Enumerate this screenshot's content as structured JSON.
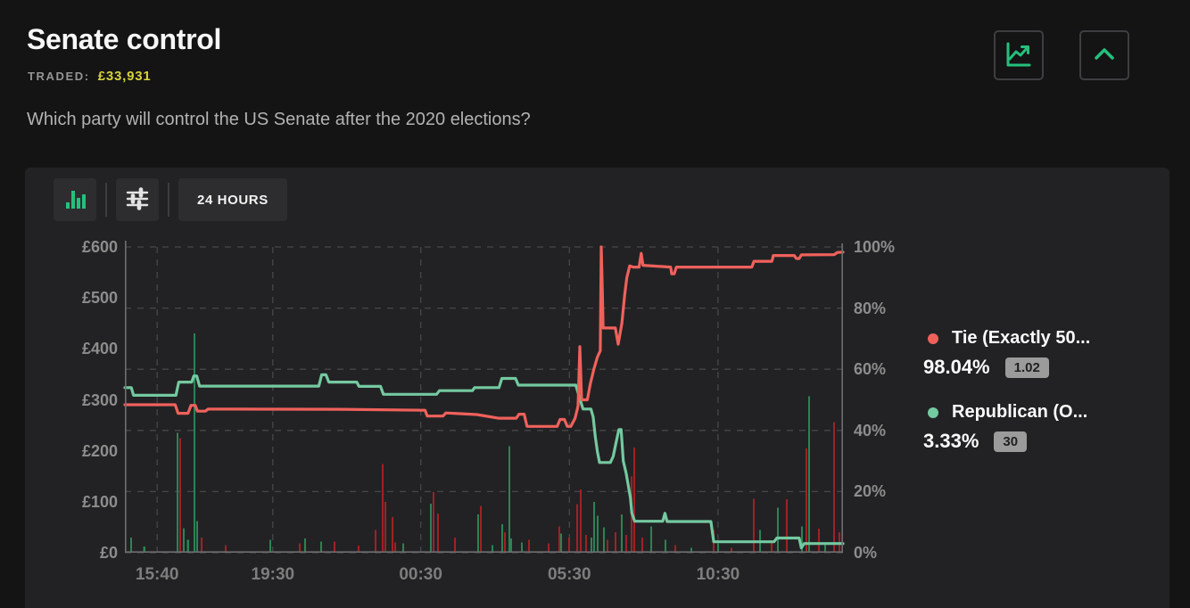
{
  "header": {
    "title": "Senate control",
    "traded_label": "TRADED:",
    "traded_value": "£33,931",
    "subtitle": "Which party will control the US Senate after the 2020 elections?"
  },
  "toolbar": {
    "time_range_label": "24 HOURS"
  },
  "legend": [
    {
      "name": "Tie (Exactly 50...",
      "percent": "98.04%",
      "odds": "1.02",
      "color": "#f0615c"
    },
    {
      "name": "Republican (O...",
      "percent": "3.33%",
      "odds": "30",
      "color": "#74c9a0"
    }
  ],
  "chart_data": {
    "type": "line",
    "title": "Senate control price history, 24 hours",
    "grid": true,
    "legend_position": "right",
    "colors": {
      "tie_line": "#f0615c",
      "republican_line": "#74c9a0",
      "volume_sell": "#a02126",
      "volume_buy": "#2c8355",
      "grid": "#47474a",
      "axis": "#6e6e70",
      "accent_green": "#25c07c",
      "traded_yellow": "#d5d23c"
    },
    "left_axis": {
      "unit": "£",
      "min": 0,
      "max": 600,
      "labels": [
        "£600",
        "£500",
        "£400",
        "£300",
        "£200",
        "£100",
        "£0"
      ]
    },
    "right_axis": {
      "unit": "%",
      "min": 0,
      "max": 100,
      "labels": [
        "100%",
        "80%",
        "60%",
        "40%",
        "20%",
        "0%"
      ]
    },
    "x_ticks": [
      {
        "label": "15:40",
        "f": 0.045
      },
      {
        "label": "19:30",
        "f": 0.206
      },
      {
        "label": "00:30",
        "f": 0.412
      },
      {
        "label": "05:30",
        "f": 0.619
      },
      {
        "label": "10:30",
        "f": 0.826
      }
    ],
    "series": [
      {
        "name": "Republican (O...",
        "color": "#74c9a0",
        "unit": "%",
        "points": [
          [
            0,
            54.0
          ],
          [
            0.009,
            54.0
          ],
          [
            0.012,
            51.5
          ],
          [
            0.071,
            51.5
          ],
          [
            0.075,
            55.8
          ],
          [
            0.093,
            55.8
          ],
          [
            0.096,
            57.8
          ],
          [
            0.1,
            57.8
          ],
          [
            0.104,
            54.5
          ],
          [
            0.27,
            54.5
          ],
          [
            0.274,
            58.2
          ],
          [
            0.28,
            58.2
          ],
          [
            0.284,
            55.8
          ],
          [
            0.323,
            55.8
          ],
          [
            0.326,
            54.4
          ],
          [
            0.356,
            54.4
          ],
          [
            0.36,
            51.8
          ],
          [
            0.434,
            51.8
          ],
          [
            0.438,
            53.0
          ],
          [
            0.484,
            53.0
          ],
          [
            0.487,
            54.0
          ],
          [
            0.521,
            54.0
          ],
          [
            0.525,
            57.0
          ],
          [
            0.544,
            57.0
          ],
          [
            0.548,
            54.8
          ],
          [
            0.628,
            54.8
          ],
          [
            0.634,
            50.0
          ],
          [
            0.638,
            47.0
          ],
          [
            0.649,
            47.0
          ],
          [
            0.652,
            44.5
          ],
          [
            0.655,
            38.0
          ],
          [
            0.658,
            33.0
          ],
          [
            0.661,
            29.5
          ],
          [
            0.676,
            29.5
          ],
          [
            0.68,
            31.5
          ],
          [
            0.684,
            36.0
          ],
          [
            0.688,
            40.3
          ],
          [
            0.691,
            40.3
          ],
          [
            0.694,
            30.0
          ],
          [
            0.698,
            26.0
          ],
          [
            0.701,
            22.0
          ],
          [
            0.704,
            18.0
          ],
          [
            0.706,
            13.0
          ],
          [
            0.71,
            10.3
          ],
          [
            0.749,
            10.3
          ],
          [
            0.752,
            12.9
          ],
          [
            0.755,
            10.2
          ],
          [
            0.816,
            10.2
          ],
          [
            0.82,
            3.6
          ],
          [
            0.904,
            3.6
          ],
          [
            0.908,
            4.8
          ],
          [
            0.939,
            4.8
          ],
          [
            0.942,
            1.6
          ],
          [
            0.946,
            3.0
          ],
          [
            1,
            3.0
          ]
        ]
      },
      {
        "name": "Tie (Exactly 50...",
        "color": "#f0615c",
        "unit": "%",
        "points": [
          [
            0,
            48.4
          ],
          [
            0.07,
            48.4
          ],
          [
            0.074,
            45.6
          ],
          [
            0.088,
            45.6
          ],
          [
            0.092,
            48.2
          ],
          [
            0.098,
            48.2
          ],
          [
            0.101,
            46.3
          ],
          [
            0.112,
            46.3
          ],
          [
            0.116,
            47.0
          ],
          [
            0.3,
            46.9
          ],
          [
            0.418,
            46.6
          ],
          [
            0.421,
            44.7
          ],
          [
            0.443,
            44.7
          ],
          [
            0.447,
            45.7
          ],
          [
            0.49,
            45.2
          ],
          [
            0.52,
            44.0
          ],
          [
            0.545,
            44.0
          ],
          [
            0.549,
            45.3
          ],
          [
            0.556,
            45.3
          ],
          [
            0.56,
            41.3
          ],
          [
            0.602,
            41.3
          ],
          [
            0.606,
            43.6
          ],
          [
            0.612,
            43.6
          ],
          [
            0.616,
            41.3
          ],
          [
            0.621,
            41.3
          ],
          [
            0.627,
            44.0
          ],
          [
            0.631,
            48.0
          ],
          [
            0.6335,
            67.4
          ],
          [
            0.636,
            50.0
          ],
          [
            0.644,
            50.0
          ],
          [
            0.648,
            55.0
          ],
          [
            0.653,
            60.0
          ],
          [
            0.658,
            64.0
          ],
          [
            0.662,
            66.0
          ],
          [
            0.6634,
            100.0
          ],
          [
            0.665,
            85.0
          ],
          [
            0.666,
            73.5
          ],
          [
            0.683,
            73.5
          ],
          [
            0.687,
            68.2
          ],
          [
            0.692,
            75.0
          ],
          [
            0.696,
            84.4
          ],
          [
            0.699,
            90.0
          ],
          [
            0.703,
            93.8
          ],
          [
            0.708,
            93.4
          ],
          [
            0.716,
            93.4
          ],
          [
            0.719,
            97.9
          ],
          [
            0.7215,
            94.0
          ],
          [
            0.76,
            93.4
          ],
          [
            0.7615,
            91.2
          ],
          [
            0.765,
            91.2
          ],
          [
            0.768,
            93.4
          ],
          [
            0.873,
            93.4
          ],
          [
            0.876,
            95.3
          ],
          [
            0.901,
            95.3
          ],
          [
            0.903,
            97.2
          ],
          [
            0.932,
            97.2
          ],
          [
            0.935,
            96.2
          ],
          [
            0.939,
            96.2
          ],
          [
            0.942,
            97.4
          ],
          [
            0.988,
            97.5
          ],
          [
            0.992,
            98.2
          ],
          [
            1,
            98.3
          ]
        ]
      }
    ],
    "volume_bars": [
      [
        0.0087,
        30,
        "b"
      ],
      [
        0.027,
        12,
        "b"
      ],
      [
        0.0733,
        235,
        "b"
      ],
      [
        0.077,
        225,
        "s"
      ],
      [
        0.082,
        48,
        "b"
      ],
      [
        0.088,
        25,
        "b"
      ],
      [
        0.0969,
        430,
        "b"
      ],
      [
        0.1006,
        62,
        "b"
      ],
      [
        0.1068,
        30,
        "s"
      ],
      [
        0.1404,
        15,
        "s"
      ],
      [
        0.2025,
        25,
        "b"
      ],
      [
        0.2435,
        18,
        "s"
      ],
      [
        0.2509,
        28,
        "b"
      ],
      [
        0.2733,
        22,
        "b"
      ],
      [
        0.2919,
        22,
        "s"
      ],
      [
        0.3255,
        14,
        "s"
      ],
      [
        0.3491,
        45,
        "s"
      ],
      [
        0.359,
        174,
        "s"
      ],
      [
        0.3627,
        100,
        "s"
      ],
      [
        0.3727,
        70,
        "s"
      ],
      [
        0.3764,
        20,
        "s"
      ],
      [
        0.3876,
        18,
        "b"
      ],
      [
        0.4261,
        96,
        "b"
      ],
      [
        0.4298,
        119,
        "s"
      ],
      [
        0.436,
        77,
        "s"
      ],
      [
        0.4596,
        30,
        "s"
      ],
      [
        0.4919,
        75,
        "b"
      ],
      [
        0.4957,
        92,
        "s"
      ],
      [
        0.5118,
        15,
        "b"
      ],
      [
        0.5255,
        56,
        "b"
      ],
      [
        0.5292,
        40,
        "s"
      ],
      [
        0.5354,
        209,
        "b"
      ],
      [
        0.5379,
        28,
        "b"
      ],
      [
        0.5528,
        20,
        "b"
      ],
      [
        0.5627,
        25,
        "s"
      ],
      [
        0.5901,
        18,
        "s"
      ],
      [
        0.605,
        52,
        "s"
      ],
      [
        0.6075,
        38,
        "b"
      ],
      [
        0.6186,
        30,
        "s"
      ],
      [
        0.6298,
        95,
        "s"
      ],
      [
        0.6348,
        124,
        "s"
      ],
      [
        0.6422,
        35,
        "s"
      ],
      [
        0.6497,
        30,
        "b"
      ],
      [
        0.6534,
        100,
        "b"
      ],
      [
        0.6584,
        73,
        "b"
      ],
      [
        0.6671,
        50,
        "b"
      ],
      [
        0.672,
        25,
        "s"
      ],
      [
        0.6832,
        40,
        "s"
      ],
      [
        0.6919,
        75,
        "b"
      ],
      [
        0.6981,
        35,
        "s"
      ],
      [
        0.7055,
        150,
        "s"
      ],
      [
        0.7093,
        206,
        "s"
      ],
      [
        0.7205,
        30,
        "s"
      ],
      [
        0.7329,
        52,
        "b"
      ],
      [
        0.7528,
        25,
        "b"
      ],
      [
        0.7665,
        15,
        "s"
      ],
      [
        0.7888,
        10,
        "b"
      ],
      [
        0.8199,
        45,
        "s"
      ],
      [
        0.8261,
        18,
        "b"
      ],
      [
        0.8447,
        10,
        "s"
      ],
      [
        0.8758,
        106,
        "s"
      ],
      [
        0.8845,
        45,
        "b"
      ],
      [
        0.9006,
        22,
        "s"
      ],
      [
        0.9093,
        88,
        "b"
      ],
      [
        0.9217,
        105,
        "s"
      ],
      [
        0.9429,
        52,
        "b"
      ],
      [
        0.9491,
        205,
        "s"
      ],
      [
        0.9528,
        307,
        "b"
      ],
      [
        0.9665,
        47,
        "s"
      ],
      [
        0.9752,
        20,
        "b"
      ],
      [
        0.9876,
        256,
        "s"
      ],
      [
        0.995,
        40,
        "s"
      ]
    ]
  }
}
